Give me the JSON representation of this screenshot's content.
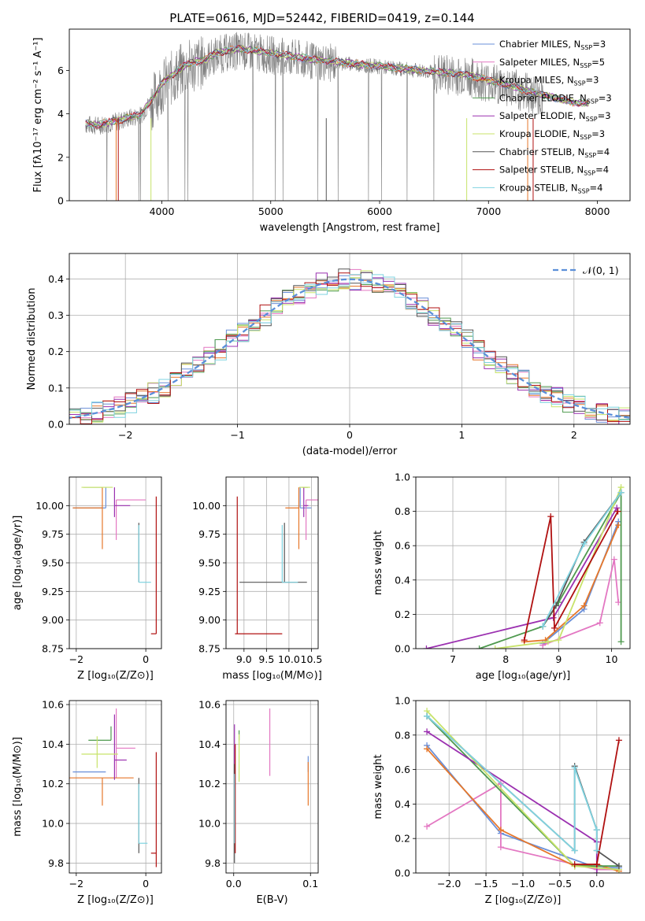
{
  "figure_title": "PLATE=0616, MJD=52442, FIBERID=0419, z=0.144",
  "colors": {
    "Chabrier MILES": "#6a8fd8",
    "Salpeter MILES": "#e377c2",
    "Kroupa MILES": "#e6772a",
    "Chabrier ELODIE": "#4f9a4f",
    "Salpeter ELODIE": "#9b30b0",
    "Kroupa ELODIE": "#c8e36a",
    "Chabrier STELIB": "#555555",
    "Salpeter STELIB": "#b01010",
    "Kroupa STELIB": "#7fd3e0",
    "data": "#7f7f7f"
  },
  "chart_data": [
    {
      "id": "spectrum",
      "type": "line",
      "title": "PLATE=0616, MJD=52442, FIBERID=0419, z=0.144",
      "xlabel": "wavelength [Angstrom, rest frame]",
      "ylabel": "Flux [fλ10⁻¹⁷ erg cm⁻² s⁻¹ A⁻¹]",
      "xlim": [
        3150,
        8300
      ],
      "ylim": [
        0,
        7.9
      ],
      "xticks": [
        4000,
        5000,
        6000,
        7000,
        8000
      ],
      "yticks": [
        0,
        2,
        4,
        6
      ],
      "grid": false,
      "legend_position": "upper-right",
      "continuum": {
        "x": [
          3300,
          3400,
          3500,
          3600,
          3700,
          3800,
          3900,
          4000,
          4100,
          4200,
          4300,
          4400,
          4500,
          4600,
          4700,
          4800,
          5000,
          5200,
          5400,
          5600,
          5800,
          6000,
          6200,
          6400,
          6600,
          6800,
          7000,
          7200,
          7400,
          7600,
          7800,
          7900
        ],
        "y": [
          3.55,
          3.5,
          3.6,
          3.7,
          3.85,
          3.95,
          4.6,
          5.4,
          5.8,
          6.2,
          6.4,
          6.5,
          6.8,
          6.9,
          7.0,
          6.95,
          6.8,
          6.65,
          6.5,
          6.4,
          6.3,
          6.2,
          6.1,
          6.0,
          5.9,
          5.8,
          5.55,
          5.3,
          5.0,
          4.75,
          4.5,
          4.5
        ]
      },
      "series": [
        {
          "name": "Chabrier MILES",
          "label_parts": [
            "Chabrier MILES, N",
            "SSP",
            "=3"
          ]
        },
        {
          "name": "Salpeter MILES",
          "label_parts": [
            "Salpeter MILES, N",
            "SSP",
            "=5"
          ]
        },
        {
          "name": "Kroupa MILES",
          "label_parts": [
            "Kroupa MILES, N",
            "SSP",
            "=3"
          ]
        },
        {
          "name": "Chabrier ELODIE",
          "label_parts": [
            "Chabrier ELODIE, N",
            "SSP",
            "=3"
          ]
        },
        {
          "name": "Salpeter ELODIE",
          "label_parts": [
            "Salpeter ELODIE, N",
            "SSP",
            "=3"
          ]
        },
        {
          "name": "Kroupa ELODIE",
          "label_parts": [
            "Kroupa ELODIE, N",
            "SSP",
            "=3"
          ]
        },
        {
          "name": "Chabrier STELIB",
          "label_parts": [
            "Chabrier STELIB, N",
            "SSP",
            "=4"
          ]
        },
        {
          "name": "Salpeter STELIB",
          "label_parts": [
            "Salpeter STELIB, N",
            "SSP",
            "=4"
          ]
        },
        {
          "name": "Kroupa STELIB",
          "label_parts": [
            "Kroupa STELIB, N",
            "SSP",
            "=4"
          ]
        }
      ]
    },
    {
      "id": "residuals",
      "type": "step",
      "xlabel": "(data-model)/error",
      "ylabel": "Normed distribution",
      "xlim": [
        -2.5,
        2.5
      ],
      "ylim": [
        0,
        0.47
      ],
      "xticks": [
        -2,
        -1,
        0,
        1,
        2
      ],
      "yticks": [
        0.0,
        0.1,
        0.2,
        0.3,
        0.4
      ],
      "grid": true,
      "legend": "𝒩(0, 1)",
      "legend_position": "upper-right",
      "reference_curve": {
        "name": "𝒩(0, 1)",
        "mean": 0,
        "sigma": 1
      }
    },
    {
      "id": "age-vs-Z",
      "type": "errorbar",
      "xlabel": "Z [log₁₀(Z/Z⊙)]",
      "ylabel": "age  [log₁₀(age/yr)]",
      "xlim": [
        -2.2,
        0.45
      ],
      "ylim": [
        8.75,
        10.25
      ],
      "xticks": [
        -2,
        0
      ],
      "yticks": [
        8.75,
        9.0,
        9.25,
        9.5,
        9.75,
        10.0
      ],
      "grid": true,
      "points": [
        {
          "series": "Chabrier MILES",
          "x": -1.15,
          "xerr": [
            0.95,
            0.0
          ],
          "y": 9.98,
          "yerr": [
            0.0,
            0.18
          ]
        },
        {
          "series": "Salpeter MILES",
          "x": -0.85,
          "xerr": [
            0.0,
            0.85
          ],
          "y": 10.05,
          "yerr": [
            0.35,
            0.0
          ]
        },
        {
          "series": "Kroupa MILES",
          "x": -1.25,
          "xerr": [
            0.85,
            0.0
          ],
          "y": 9.98,
          "yerr": [
            0.36,
            0.18
          ]
        },
        {
          "series": "Chabrier ELODIE",
          "x": -1.25,
          "xerr": [
            0.55,
            0.0
          ],
          "y": 10.16,
          "yerr": [
            0.0,
            0.0
          ]
        },
        {
          "series": "Salpeter ELODIE",
          "x": -0.9,
          "xerr": [
            0.0,
            0.45
          ],
          "y": 10.0,
          "yerr": [
            0.1,
            0.16
          ]
        },
        {
          "series": "Kroupa ELODIE",
          "x": -1.4,
          "xerr": [
            0.45,
            0.45
          ],
          "y": 10.16,
          "yerr": [
            0.0,
            0.0
          ]
        },
        {
          "series": "Chabrier STELIB",
          "x": -0.2,
          "xerr": [
            0.0,
            0.0
          ],
          "y": 9.33,
          "yerr": [
            0.0,
            0.52
          ]
        },
        {
          "series": "Salpeter STELIB",
          "x": 0.3,
          "xerr": [
            0.15,
            0.0
          ],
          "y": 8.88,
          "yerr": [
            0.0,
            1.2
          ]
        },
        {
          "series": "Kroupa STELIB",
          "x": -0.2,
          "xerr": [
            0.0,
            0.35
          ],
          "y": 9.33,
          "yerr": [
            0.0,
            0.5
          ]
        }
      ]
    },
    {
      "id": "age-vs-mass",
      "type": "errorbar",
      "xlabel": "mass [log₁₀(M/M⊙)]",
      "ylabel": "",
      "xlim": [
        8.6,
        10.65
      ],
      "ylim": [
        8.75,
        10.25
      ],
      "xticks": [
        9.0,
        9.5,
        10.0,
        10.5
      ],
      "yticks": [
        8.75,
        9.0,
        9.25,
        9.5,
        9.75,
        10.0
      ],
      "grid": true,
      "points": [
        {
          "series": "Chabrier MILES",
          "x": 10.25,
          "xerr": [
            0.0,
            0.25
          ],
          "y": 9.98,
          "yerr": [
            0.0,
            0.18
          ]
        },
        {
          "series": "Salpeter MILES",
          "x": 10.38,
          "xerr": [
            0.0,
            0.27
          ],
          "y": 10.05,
          "yerr": [
            0.35,
            0.0
          ]
        },
        {
          "series": "Kroupa MILES",
          "x": 10.22,
          "xerr": [
            0.3,
            0.0
          ],
          "y": 9.98,
          "yerr": [
            0.36,
            0.18
          ]
        },
        {
          "series": "Chabrier ELODIE",
          "x": 10.42,
          "xerr": [
            0.12,
            0.0
          ],
          "y": 10.16,
          "yerr": [
            0.0,
            0.0
          ]
        },
        {
          "series": "Salpeter ELODIE",
          "x": 10.33,
          "xerr": [
            0.0,
            0.1
          ],
          "y": 10.0,
          "yerr": [
            0.1,
            0.16
          ]
        },
        {
          "series": "Kroupa ELODIE",
          "x": 10.35,
          "xerr": [
            0.12,
            0.12
          ],
          "y": 10.16,
          "yerr": [
            0.0,
            0.0
          ]
        },
        {
          "series": "Chabrier STELIB",
          "x": 9.9,
          "xerr": [
            1.0,
            0.5
          ],
          "y": 9.33,
          "yerr": [
            0.0,
            0.52
          ]
        },
        {
          "series": "Salpeter STELIB",
          "x": 8.85,
          "xerr": [
            0.05,
            1.0
          ],
          "y": 8.88,
          "yerr": [
            0.0,
            1.2
          ]
        },
        {
          "series": "Kroupa STELIB",
          "x": 9.85,
          "xerr": [
            0.0,
            0.35
          ],
          "y": 9.33,
          "yerr": [
            0.0,
            0.5
          ]
        }
      ]
    },
    {
      "id": "weight-vs-age",
      "type": "line",
      "xlabel": "age  [log₁₀(age/yr)]",
      "ylabel": "mass weight",
      "xlim": [
        6.3,
        10.35
      ],
      "ylim": [
        0.0,
        1.0
      ],
      "xticks": [
        7,
        8,
        9,
        10
      ],
      "yticks": [
        0.0,
        0.2,
        0.4,
        0.6,
        0.8,
        1.0
      ],
      "grid": true,
      "series": [
        {
          "name": "Chabrier MILES",
          "x": [
            8.7,
            9.48,
            10.13
          ],
          "y": [
            0.03,
            0.23,
            0.74
          ]
        },
        {
          "name": "Salpeter MILES",
          "x": [
            8.7,
            9.78,
            10.05,
            10.13
          ],
          "y": [
            0.02,
            0.15,
            0.52,
            0.27
          ]
        },
        {
          "name": "Kroupa MILES",
          "x": [
            8.35,
            8.75,
            9.48,
            10.13
          ],
          "y": [
            0.04,
            0.05,
            0.25,
            0.72
          ]
        },
        {
          "name": "Chabrier ELODIE",
          "x": [
            7.5,
            8.7,
            9.0,
            10.18,
            10.18
          ],
          "y": [
            0.0,
            0.13,
            0.27,
            0.91,
            0.04
          ]
        },
        {
          "name": "Salpeter ELODIE",
          "x": [
            6.5,
            8.9,
            10.1
          ],
          "y": [
            0.0,
            0.18,
            0.82
          ]
        },
        {
          "name": "Kroupa ELODIE",
          "x": [
            7.8,
            8.8,
            9.0,
            10.18
          ],
          "y": [
            0.0,
            0.04,
            0.05,
            0.94
          ]
        },
        {
          "name": "Chabrier STELIB",
          "x": [
            8.7,
            8.95,
            9.48,
            10.18
          ],
          "y": [
            0.13,
            0.25,
            0.62,
            0.91
          ]
        },
        {
          "name": "Salpeter STELIB",
          "x": [
            8.35,
            8.85,
            8.92,
            10.12
          ],
          "y": [
            0.05,
            0.77,
            0.12,
            0.8
          ]
        },
        {
          "name": "Kroupa STELIB",
          "x": [
            8.7,
            9.48,
            10.18
          ],
          "y": [
            0.13,
            0.61,
            0.91
          ]
        }
      ]
    },
    {
      "id": "mass-vs-Z",
      "type": "errorbar",
      "xlabel": "Z [log₁₀(Z/Z⊙)]",
      "ylabel": "mass [log₁₀(M/M⊙)]",
      "xlim": [
        -2.2,
        0.45
      ],
      "ylim": [
        9.75,
        10.62
      ],
      "xticks": [
        -2,
        0
      ],
      "yticks": [
        9.8,
        10.0,
        10.2,
        10.4,
        10.6
      ],
      "grid": true,
      "points": [
        {
          "series": "Chabrier MILES",
          "x": -1.15,
          "xerr": [
            0.95,
            0.0
          ],
          "y": 10.26,
          "yerr": [
            0.0,
            0.0
          ]
        },
        {
          "series": "Salpeter MILES",
          "x": -0.85,
          "xerr": [
            0.0,
            0.55
          ],
          "y": 10.38,
          "yerr": [
            0.15,
            0.2
          ]
        },
        {
          "series": "Kroupa MILES",
          "x": -1.25,
          "xerr": [
            0.95,
            0.9
          ],
          "y": 10.23,
          "yerr": [
            0.14,
            0.0
          ]
        },
        {
          "series": "Chabrier ELODIE",
          "x": -1.0,
          "xerr": [
            0.65,
            0.0
          ],
          "y": 10.42,
          "yerr": [
            0.0,
            0.07
          ]
        },
        {
          "series": "Salpeter ELODIE",
          "x": -0.9,
          "xerr": [
            0.0,
            0.35
          ],
          "y": 10.32,
          "yerr": [
            0.1,
            0.23
          ]
        },
        {
          "series": "Kroupa ELODIE",
          "x": -1.4,
          "xerr": [
            0.45,
            0.6
          ],
          "y": 10.35,
          "yerr": [
            0.07,
            0.09
          ]
        },
        {
          "series": "Chabrier STELIB",
          "x": -0.2,
          "xerr": [
            0.0,
            0.0
          ],
          "y": 9.9,
          "yerr": [
            0.05,
            0.33
          ]
        },
        {
          "series": "Salpeter STELIB",
          "x": 0.3,
          "xerr": [
            0.15,
            0.0
          ],
          "y": 9.85,
          "yerr": [
            0.07,
            0.51
          ]
        },
        {
          "series": "Kroupa STELIB",
          "x": -0.2,
          "xerr": [
            0.0,
            0.25
          ],
          "y": 9.9,
          "yerr": [
            0.0,
            0.3
          ]
        }
      ]
    },
    {
      "id": "mass-vs-ebv",
      "type": "errorbar",
      "xlabel": "E(B-V)",
      "ylabel": "",
      "xlim": [
        -0.01,
        0.11
      ],
      "ylim": [
        9.75,
        10.62
      ],
      "xticks": [
        0.0,
        0.1
      ],
      "yticks": [
        9.8,
        10.0,
        10.2,
        10.4,
        10.6
      ],
      "grid": true,
      "points": [
        {
          "series": "Chabrier MILES",
          "x": 0.097,
          "xerr": [
            0.0,
            0.0
          ],
          "y": 10.26,
          "yerr": [
            0.0,
            0.08
          ]
        },
        {
          "series": "Salpeter MILES",
          "x": 0.047,
          "xerr": [
            0.0,
            0.0
          ],
          "y": 10.38,
          "yerr": [
            0.14,
            0.2
          ]
        },
        {
          "series": "Kroupa MILES",
          "x": 0.097,
          "xerr": [
            0.0,
            0.0
          ],
          "y": 10.23,
          "yerr": [
            0.14,
            0.08
          ]
        },
        {
          "series": "Chabrier ELODIE",
          "x": 0.007,
          "xerr": [
            0.0,
            0.0
          ],
          "y": 10.42,
          "yerr": [
            0.0,
            0.05
          ]
        },
        {
          "series": "Salpeter ELODIE",
          "x": 0.001,
          "xerr": [
            0.0,
            0.0
          ],
          "y": 10.32,
          "yerr": [
            0.14,
            0.18
          ]
        },
        {
          "series": "Kroupa ELODIE",
          "x": 0.007,
          "xerr": [
            0.0,
            0.0
          ],
          "y": 10.35,
          "yerr": [
            0.14,
            0.1
          ]
        },
        {
          "series": "Chabrier STELIB",
          "x": 0.001,
          "xerr": [
            0.0,
            0.0
          ],
          "y": 9.9,
          "yerr": [
            0.1,
            0.4
          ]
        },
        {
          "series": "Salpeter STELIB",
          "x": 0.002,
          "xerr": [
            0.0,
            0.0
          ],
          "y": 9.9,
          "yerr": [
            0.05,
            0.5
          ]
        },
        {
          "series": "Kroupa STELIB",
          "x": 0.001,
          "xerr": [
            0.0,
            0.0
          ],
          "y": 9.9,
          "yerr": [
            0.0,
            0.35
          ]
        }
      ]
    },
    {
      "id": "weight-vs-Z",
      "type": "line",
      "xlabel": "Z [log₁₀(Z/Z⊙)]",
      "ylabel": "mass weight",
      "xlim": [
        -2.45,
        0.45
      ],
      "ylim": [
        0.0,
        1.0
      ],
      "xticks": [
        -2.0,
        -1.5,
        -1.0,
        -0.5,
        0.0
      ],
      "yticks": [
        0.0,
        0.2,
        0.4,
        0.6,
        0.8,
        1.0
      ],
      "grid": true,
      "series": [
        {
          "name": "Chabrier MILES",
          "x": [
            -2.3,
            -1.3,
            0.0,
            0.3
          ],
          "y": [
            0.74,
            0.23,
            0.03,
            0.03
          ]
        },
        {
          "name": "Salpeter MILES",
          "x": [
            -2.3,
            -1.3,
            -1.3,
            0.0,
            0.3
          ],
          "y": [
            0.27,
            0.52,
            0.15,
            0.02,
            0.02
          ]
        },
        {
          "name": "Kroupa MILES",
          "x": [
            -2.3,
            -1.3,
            -0.3,
            0.0,
            0.3
          ],
          "y": [
            0.72,
            0.25,
            0.04,
            0.05,
            0.01
          ]
        },
        {
          "name": "Chabrier ELODIE",
          "x": [
            -2.3,
            -0.3,
            0.3
          ],
          "y": [
            0.91,
            0.04,
            0.04
          ]
        },
        {
          "name": "Salpeter ELODIE",
          "x": [
            -2.3,
            0.0,
            0.0
          ],
          "y": [
            0.82,
            0.18,
            0.0
          ]
        },
        {
          "name": "Kroupa ELODIE",
          "x": [
            -2.3,
            -0.3,
            0.3
          ],
          "y": [
            0.94,
            0.04,
            0.02
          ]
        },
        {
          "name": "Chabrier STELIB",
          "x": [
            -2.3,
            -0.3,
            -0.3,
            0.0,
            0.0,
            0.3
          ],
          "y": [
            0.91,
            0.13,
            0.62,
            0.25,
            0.13,
            0.04
          ]
        },
        {
          "name": "Salpeter STELIB",
          "x": [
            -0.3,
            0.0,
            0.0,
            0.3
          ],
          "y": [
            0.05,
            0.05,
            0.05,
            0.77
          ]
        },
        {
          "name": "Kroupa STELIB",
          "x": [
            -2.3,
            -0.3,
            -0.3,
            0.0,
            0.0
          ],
          "y": [
            0.91,
            0.13,
            0.61,
            0.25,
            0.13
          ]
        }
      ]
    }
  ]
}
